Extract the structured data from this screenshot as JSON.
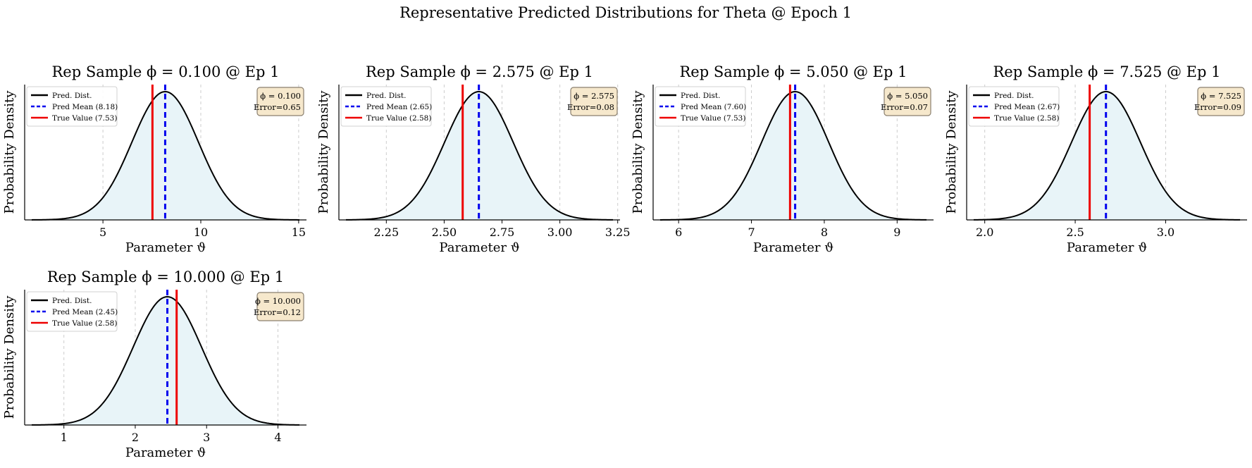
{
  "figure": {
    "suptitle": "Representative Predicted Distributions for Theta @ Epoch 1"
  },
  "chart_data": [
    {
      "type": "line",
      "title": "Rep Sample ϕ = 0.100 @ Ep 1",
      "xlabel": "Parameter ϑ",
      "ylabel": "Probability Density",
      "xlim": [
        1.0,
        15.4
      ],
      "xticks": [
        5,
        10,
        15
      ],
      "xtick_labels": [
        "5",
        "10",
        "15"
      ],
      "pred_mean": 8.18,
      "true_value": 7.53,
      "std": 1.7,
      "legend": [
        "Pred. Dist.",
        "Pred Mean (8.18)",
        "True Value (7.53)"
      ],
      "legend_position": "top-left",
      "annotation": [
        "ϕ = 0.100",
        "Error=0.65"
      ],
      "annotation_position": "top-right",
      "grid": "x-dashed"
    },
    {
      "type": "line",
      "title": "Rep Sample ϕ = 2.575 @ Ep 1",
      "xlabel": "Parameter ϑ",
      "ylabel": "Probability Density",
      "xlim": [
        2.045,
        3.26
      ],
      "xticks": [
        2.25,
        2.5,
        2.75,
        3.0,
        3.25
      ],
      "xtick_labels": [
        "2.25",
        "2.50",
        "2.75",
        "3.00",
        "3.25"
      ],
      "pred_mean": 2.65,
      "true_value": 2.58,
      "std": 0.148,
      "legend": [
        "Pred. Dist.",
        "Pred Mean (2.65)",
        "True Value (2.58)"
      ],
      "legend_position": "top-left",
      "annotation": [
        "ϕ = 2.575",
        "Error=0.08"
      ],
      "annotation_position": "top-right",
      "grid": "x-dashed"
    },
    {
      "type": "line",
      "title": "Rep Sample ϕ = 5.050 @ Ep 1",
      "xlabel": "Parameter ϑ",
      "ylabel": "Probability Density",
      "xlim": [
        5.65,
        9.5
      ],
      "xticks": [
        6,
        7,
        8,
        9
      ],
      "xtick_labels": [
        "6",
        "7",
        "8",
        "9"
      ],
      "pred_mean": 7.6,
      "true_value": 7.53,
      "std": 0.46,
      "legend": [
        "Pred. Dist.",
        "Pred Mean (7.60)",
        "True Value (7.53)"
      ],
      "legend_position": "top-left",
      "annotation": [
        "ϕ = 5.050",
        "Error=0.07"
      ],
      "annotation_position": "top-right",
      "grid": "x-dashed"
    },
    {
      "type": "line",
      "title": "Rep Sample ϕ = 7.525 @ Ep 1",
      "xlabel": "Parameter ϑ",
      "ylabel": "Probability Density",
      "xlim": [
        1.9,
        3.45
      ],
      "xticks": [
        2.0,
        2.5,
        3.0
      ],
      "xtick_labels": [
        "2.0",
        "2.5",
        "3.0"
      ],
      "pred_mean": 2.67,
      "true_value": 2.58,
      "std": 0.19,
      "legend": [
        "Pred. Dist.",
        "Pred Mean (2.67)",
        "True Value (2.58)"
      ],
      "legend_position": "top-left",
      "annotation": [
        "ϕ = 7.525",
        "Error=0.09"
      ],
      "annotation_position": "top-right",
      "grid": "x-dashed"
    },
    {
      "type": "line",
      "title": "Rep Sample ϕ = 10.000 @ Ep 1",
      "xlabel": "Parameter ϑ",
      "ylabel": "Probability Density",
      "xlim": [
        0.45,
        4.4
      ],
      "xticks": [
        1,
        2,
        3,
        4
      ],
      "xtick_labels": [
        "1",
        "2",
        "3",
        "4"
      ],
      "pred_mean": 2.45,
      "true_value": 2.58,
      "std": 0.48,
      "legend": [
        "Pred. Dist.",
        "Pred Mean (2.45)",
        "True Value (2.58)"
      ],
      "legend_position": "top-left",
      "annotation": [
        "ϕ = 10.000",
        "Error=0.12"
      ],
      "annotation_position": "top-right",
      "grid": "x-dashed"
    }
  ],
  "colors": {
    "pred_dist": "#000000",
    "pred_mean": "#0000ee",
    "true_value": "#ee0000",
    "fill": "#e8f4f8",
    "grid": "#cccccc",
    "annotation_bg": "#f6e8cc",
    "annotation_border": "#8a7f6e"
  }
}
